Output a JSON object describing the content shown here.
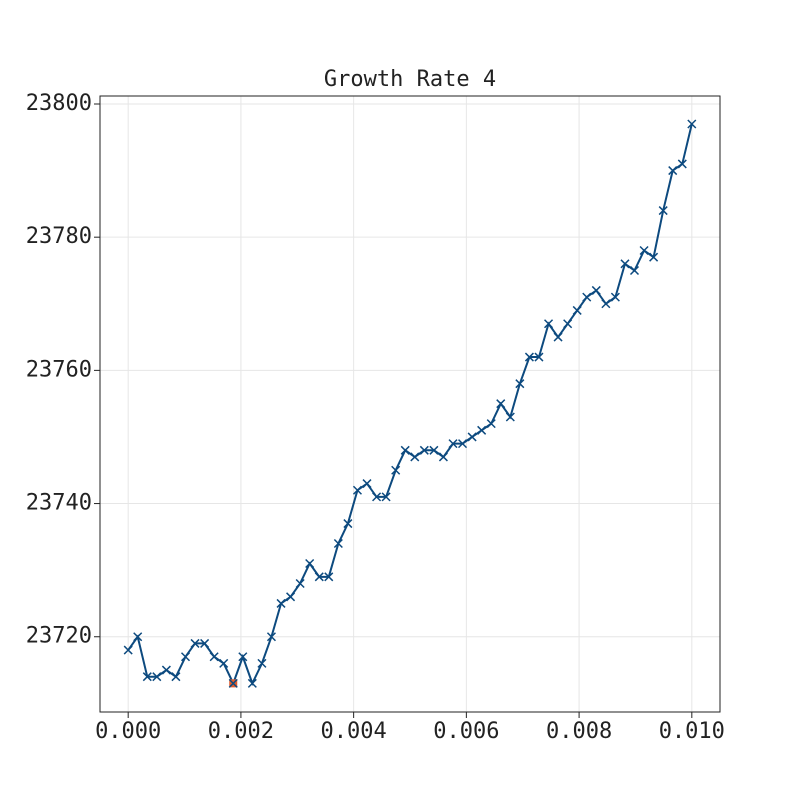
{
  "chart_data": {
    "type": "line",
    "title": "Growth Rate 4",
    "x": [
      0,
      0.000169,
      0.000339,
      0.000508,
      0.000678,
      0.000847,
      0.001017,
      0.001186,
      0.001356,
      0.001525,
      0.001695,
      0.001864,
      0.002034,
      0.002203,
      0.002373,
      0.002542,
      0.002712,
      0.002881,
      0.003051,
      0.00322,
      0.00339,
      0.003559,
      0.003729,
      0.003898,
      0.004068,
      0.004237,
      0.004407,
      0.004576,
      0.004746,
      0.004915,
      0.005085,
      0.005254,
      0.005424,
      0.005593,
      0.005763,
      0.005932,
      0.006102,
      0.006271,
      0.006441,
      0.00661,
      0.00678,
      0.006949,
      0.007119,
      0.007288,
      0.007458,
      0.007627,
      0.007797,
      0.007966,
      0.008136,
      0.008305,
      0.008475,
      0.008644,
      0.008814,
      0.008983,
      0.009153,
      0.009322,
      0.009492,
      0.009661,
      0.009831,
      0.01
    ],
    "values": [
      23718,
      23720,
      23714,
      23714,
      23715,
      23714,
      23717,
      23719,
      23719,
      23717,
      23716,
      23713,
      23717,
      23713,
      23716,
      23720,
      23725,
      23726,
      23728,
      23731,
      23729,
      23729,
      23734,
      23737,
      23742,
      23743,
      23741,
      23741,
      23745,
      23748,
      23747,
      23748,
      23748,
      23747,
      23749,
      23749,
      23750,
      23751,
      23752,
      23755,
      23753,
      23758,
      23762,
      23762,
      23767,
      23765,
      23767,
      23769,
      23771,
      23772,
      23770,
      23771,
      23776,
      23775,
      23778,
      23777,
      23784,
      23790,
      23791,
      23797
    ],
    "color": "#0d4a7f",
    "marker": "x",
    "highlight_index": 11,
    "highlight_color": "#e05a2b",
    "xlim": [
      -0.0005,
      0.0105
    ],
    "ylim": [
      23708.7,
      23801.2
    ],
    "xticks": [
      {
        "value": 0,
        "label": "0.000"
      },
      {
        "value": 0.002,
        "label": "0.002"
      },
      {
        "value": 0.004,
        "label": "0.004"
      },
      {
        "value": 0.006,
        "label": "0.006"
      },
      {
        "value": 0.008,
        "label": "0.008"
      },
      {
        "value": 0.01,
        "label": "0.010"
      }
    ],
    "yticks": [
      23720,
      23740,
      23760,
      23780,
      23800
    ],
    "grid": true
  }
}
